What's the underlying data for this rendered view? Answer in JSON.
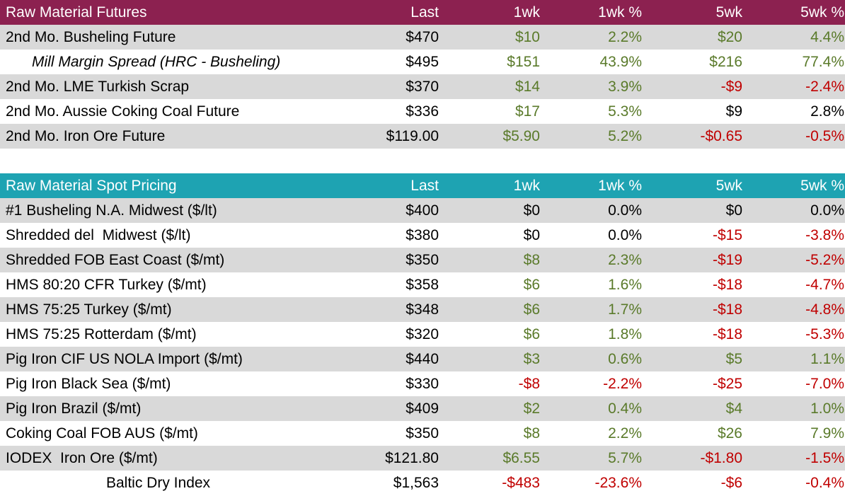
{
  "futures": {
    "header": [
      "Raw Material Futures",
      "Last",
      "1wk",
      "1wk %",
      "5wk",
      "5wk %"
    ],
    "rows": [
      {
        "label": "2nd Mo. Busheling Future",
        "cells": [
          "$470",
          "$10",
          "2.2%",
          "$20",
          "4.4%"
        ],
        "colors": [
          "#000000",
          "#5a7a2a",
          "#5a7a2a",
          "#5a7a2a",
          "#5a7a2a"
        ]
      },
      {
        "label": "Mill Margin Spread (HRC - Busheling)",
        "cells": [
          "$495",
          "$151",
          "43.9%",
          "$216",
          "77.4%"
        ],
        "colors": [
          "#000000",
          "#5a7a2a",
          "#5a7a2a",
          "#5a7a2a",
          "#5a7a2a"
        ]
      },
      {
        "label": "2nd Mo. LME Turkish Scrap",
        "cells": [
          "$370",
          "$14",
          "3.9%",
          "-$9",
          "-2.4%"
        ],
        "colors": [
          "#000000",
          "#5a7a2a",
          "#5a7a2a",
          "#c00000",
          "#c00000"
        ]
      },
      {
        "label": "2nd Mo. Aussie Coking Coal Future",
        "cells": [
          "$336",
          "$17",
          "5.3%",
          "$9",
          "2.8%"
        ],
        "colors": [
          "#000000",
          "#5a7a2a",
          "#5a7a2a",
          "#000000",
          "#000000"
        ]
      },
      {
        "label": "2nd Mo. Iron Ore Future",
        "cells": [
          "$119.00",
          "$5.90",
          "5.2%",
          "-$0.65",
          "-0.5%"
        ],
        "colors": [
          "#000000",
          "#5a7a2a",
          "#5a7a2a",
          "#c00000",
          "#c00000"
        ]
      }
    ]
  },
  "spot": {
    "header": [
      "Raw Material Spot Pricing",
      "Last",
      "1wk",
      "1wk %",
      "5wk",
      "5wk %"
    ],
    "rows": [
      {
        "label": "#1 Busheling N.A. Midwest ($/lt)",
        "cells": [
          "$400",
          "$0",
          "0.0%",
          "$0",
          "0.0%"
        ],
        "colors": [
          "#000000",
          "#000000",
          "#000000",
          "#000000",
          "#000000"
        ]
      },
      {
        "label": "Shredded del  Midwest ($/lt)",
        "cells": [
          "$380",
          "$0",
          "0.0%",
          "-$15",
          "-3.8%"
        ],
        "colors": [
          "#000000",
          "#000000",
          "#000000",
          "#c00000",
          "#c00000"
        ]
      },
      {
        "label": "Shredded FOB East Coast ($/mt)",
        "cells": [
          "$350",
          "$8",
          "2.3%",
          "-$19",
          "-5.2%"
        ],
        "colors": [
          "#000000",
          "#5a7a2a",
          "#5a7a2a",
          "#c00000",
          "#c00000"
        ]
      },
      {
        "label": "HMS 80:20 CFR Turkey ($/mt)",
        "cells": [
          "$358",
          "$6",
          "1.6%",
          "-$18",
          "-4.7%"
        ],
        "colors": [
          "#000000",
          "#5a7a2a",
          "#5a7a2a",
          "#c00000",
          "#c00000"
        ]
      },
      {
        "label": "HMS 75:25 Turkey ($/mt)",
        "cells": [
          "$348",
          "$6",
          "1.7%",
          "-$18",
          "-4.8%"
        ],
        "colors": [
          "#000000",
          "#5a7a2a",
          "#5a7a2a",
          "#c00000",
          "#c00000"
        ]
      },
      {
        "label": "HMS 75:25 Rotterdam ($/mt)",
        "cells": [
          "$320",
          "$6",
          "1.8%",
          "-$18",
          "-5.3%"
        ],
        "colors": [
          "#000000",
          "#5a7a2a",
          "#5a7a2a",
          "#c00000",
          "#c00000"
        ]
      },
      {
        "label": "Pig Iron CIF US NOLA Import ($/mt)",
        "cells": [
          "$440",
          "$3",
          "0.6%",
          "$5",
          "1.1%"
        ],
        "colors": [
          "#000000",
          "#5a7a2a",
          "#5a7a2a",
          "#5a7a2a",
          "#5a7a2a"
        ]
      },
      {
        "label": "Pig Iron Black Sea ($/mt)",
        "cells": [
          "$330",
          "-$8",
          "-2.2%",
          "-$25",
          "-7.0%"
        ],
        "colors": [
          "#000000",
          "#c00000",
          "#c00000",
          "#c00000",
          "#c00000"
        ]
      },
      {
        "label": "Pig Iron Brazil ($/mt)",
        "cells": [
          "$409",
          "$2",
          "0.4%",
          "$4",
          "1.0%"
        ],
        "colors": [
          "#000000",
          "#5a7a2a",
          "#5a7a2a",
          "#5a7a2a",
          "#5a7a2a"
        ]
      },
      {
        "label": "Coking Coal FOB AUS ($/mt)",
        "cells": [
          "$350",
          "$8",
          "2.2%",
          "$26",
          "7.9%"
        ],
        "colors": [
          "#000000",
          "#5a7a2a",
          "#5a7a2a",
          "#5a7a2a",
          "#5a7a2a"
        ]
      },
      {
        "label": "IODEX  Iron Ore ($/mt)",
        "cells": [
          "$121.80",
          "$6.55",
          "5.7%",
          "-$1.80",
          "-1.5%"
        ],
        "colors": [
          "#000000",
          "#5a7a2a",
          "#5a7a2a",
          "#c00000",
          "#c00000"
        ]
      },
      {
        "label": "Baltic Dry Index",
        "cells": [
          "$1,563",
          "-$483",
          "-23.6%",
          "-$6",
          "-0.4%"
        ],
        "colors": [
          "#000000",
          "#c00000",
          "#c00000",
          "#c00000",
          "#c00000"
        ]
      }
    ]
  }
}
